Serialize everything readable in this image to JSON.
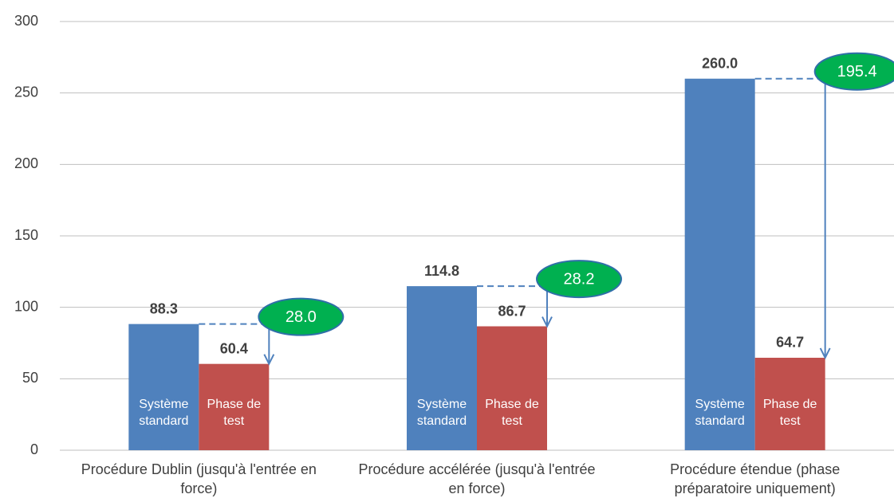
{
  "chart_data": {
    "type": "bar",
    "categories": [
      "Procédure Dublin (jusqu'à l'entrée en force)",
      "Procédure accélérée (jusqu'à l'entrée en force)",
      "Procédure étendue (phase préparatoire uniquement)"
    ],
    "series": [
      {
        "name": "Système standard",
        "color": "#4f81bd",
        "values": [
          88.3,
          114.8,
          260.0
        ],
        "value_labels": [
          "88.3",
          "114.8",
          "260.0"
        ]
      },
      {
        "name": "Phase de test",
        "color": "#c0504d",
        "values": [
          60.4,
          86.7,
          64.7
        ],
        "value_labels": [
          "60.4",
          "86.7",
          "64.7"
        ]
      }
    ],
    "differences": {
      "color": "#00b050",
      "values": [
        28.0,
        28.2,
        195.4
      ],
      "value_labels": [
        "28.0",
        "28.2",
        "195.4"
      ]
    },
    "ylim": [
      0,
      300
    ],
    "yticks": [
      0,
      50,
      100,
      150,
      200,
      250,
      300
    ],
    "grid": true
  }
}
